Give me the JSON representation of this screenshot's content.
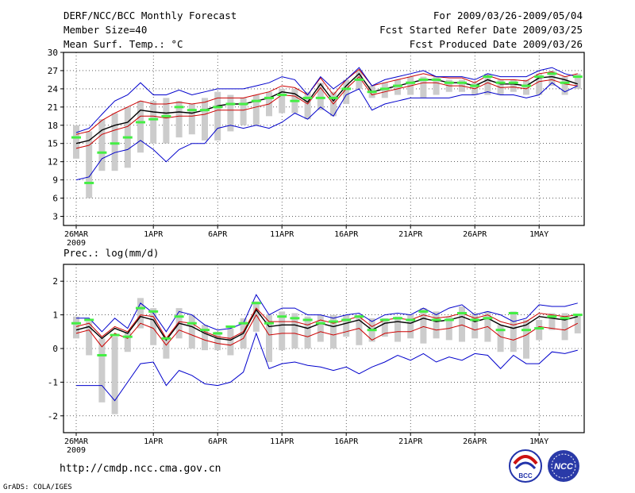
{
  "header": {
    "title": "DERF/NCC/BCC Monthly Forecast",
    "member_size": "Member Size=40",
    "variable": "Mean Surf. Temp.: °C",
    "period": "For 2009/03/26-2009/05/04",
    "fcst_started": "Fcst Started Refer Date 2009/03/25",
    "fcst_produced": "Fcst Produced Date 2009/03/26"
  },
  "footer": {
    "url": "http://cmdp.ncc.cma.gov.cn",
    "grads": "GrADS: COLA/IGES",
    "logo_bcc": "BCC",
    "logo_ncc": "NCC"
  },
  "colors": {
    "mean": "#000000",
    "spread": "#cc0000",
    "extreme": "#0000cc",
    "box": "#cccccc",
    "member_mark": "#44ee44"
  },
  "chart_data": [
    {
      "type": "line",
      "title": "",
      "ylabel": "Mean Surf. Temp.: °C",
      "ylim": [
        1.5,
        30
      ],
      "yticks": [
        3,
        6,
        9,
        12,
        15,
        18,
        21,
        24,
        27,
        30
      ],
      "xticks": [
        {
          "day": 0,
          "label": "26MAR",
          "sub": "2009"
        },
        {
          "day": 6,
          "label": "1APR"
        },
        {
          "day": 11,
          "label": "6APR"
        },
        {
          "day": 16,
          "label": "11APR"
        },
        {
          "day": 21,
          "label": "16APR"
        },
        {
          "day": 26,
          "label": "21APR"
        },
        {
          "day": 31,
          "label": "26APR"
        },
        {
          "day": 36,
          "label": "1MAY"
        }
      ],
      "days": 40,
      "series": [
        {
          "name": "ensemble_mean",
          "values": [
            15.0,
            15.5,
            17.2,
            18.0,
            18.5,
            20.5,
            20.2,
            20.0,
            20.2,
            20.0,
            20.5,
            21.2,
            21.5,
            21.5,
            22.0,
            22.5,
            23.5,
            23.2,
            21.8,
            24.8,
            22.0,
            24.5,
            26.5,
            23.5,
            24.0,
            24.5,
            25.0,
            25.5,
            25.5,
            25.0,
            25.0,
            24.5,
            25.5,
            24.8,
            24.8,
            24.5,
            25.8,
            26.0,
            25.5,
            24.8
          ]
        },
        {
          "name": "upper_spread",
          "values": [
            16.5,
            17.0,
            18.8,
            20.0,
            21.0,
            22.0,
            21.5,
            21.5,
            21.8,
            21.5,
            21.8,
            22.5,
            22.5,
            22.5,
            23.0,
            23.5,
            24.5,
            24.2,
            23.0,
            25.8,
            23.0,
            25.5,
            27.2,
            24.5,
            25.0,
            25.5,
            26.0,
            26.5,
            26.0,
            25.8,
            25.8,
            25.0,
            26.2,
            25.5,
            25.5,
            25.3,
            26.5,
            26.8,
            26.0,
            26.5
          ]
        },
        {
          "name": "lower_spread",
          "values": [
            14.2,
            14.7,
            16.5,
            17.2,
            17.8,
            19.5,
            19.5,
            19.2,
            19.5,
            19.5,
            19.8,
            20.5,
            20.5,
            20.5,
            21.0,
            21.5,
            23.0,
            22.8,
            21.5,
            24.2,
            21.5,
            24.0,
            26.0,
            23.0,
            23.5,
            24.0,
            24.5,
            25.0,
            25.0,
            24.5,
            24.5,
            24.0,
            25.0,
            24.2,
            24.3,
            24.0,
            25.2,
            25.5,
            24.8,
            24.5
          ]
        },
        {
          "name": "member_max",
          "values": [
            16.8,
            17.5,
            19.8,
            22.0,
            23.0,
            25.0,
            23.0,
            23.0,
            23.8,
            23.0,
            23.5,
            24.0,
            24.0,
            24.0,
            24.5,
            25.0,
            26.0,
            25.5,
            23.0,
            26.0,
            24.0,
            25.5,
            27.5,
            24.5,
            25.5,
            26.0,
            26.5,
            27.0,
            26.0,
            26.0,
            26.0,
            25.5,
            26.5,
            26.0,
            26.0,
            26.0,
            27.0,
            27.5,
            26.5,
            26.0
          ]
        },
        {
          "name": "member_min",
          "values": [
            9.0,
            9.5,
            12.5,
            13.5,
            14.0,
            15.5,
            14.0,
            12.0,
            14.0,
            15.0,
            15.0,
            17.5,
            18.0,
            17.5,
            18.0,
            17.5,
            18.5,
            20.0,
            19.0,
            21.0,
            19.5,
            23.0,
            24.0,
            20.5,
            21.5,
            22.0,
            22.5,
            22.5,
            22.5,
            22.5,
            23.0,
            23.0,
            23.5,
            23.0,
            23.0,
            22.5,
            23.0,
            25.0,
            23.5,
            24.5
          ]
        },
        {
          "name": "observed_marks",
          "values": [
            16.0,
            8.5,
            13.5,
            15.0,
            16.0,
            18.5,
            19.0,
            19.5,
            21.0,
            20.5,
            20.5,
            21.0,
            21.5,
            21.5,
            22.0,
            22.5,
            23.0,
            22.0,
            22.5,
            22.5,
            22.5,
            24.0,
            25.5,
            23.5,
            24.0,
            24.5,
            25.0,
            25.5,
            25.5,
            25.0,
            25.0,
            24.5,
            26.0,
            25.0,
            25.0,
            24.5,
            26.0,
            26.5,
            25.0,
            26.0
          ]
        }
      ],
      "bars": [
        {
          "low": 12.5,
          "high": 18.0
        },
        {
          "low": 6.0,
          "high": 17.0
        },
        {
          "low": 10.5,
          "high": 19.0
        },
        {
          "low": 10.5,
          "high": 20.0
        },
        {
          "low": 11.0,
          "high": 21.0
        },
        {
          "low": 13.5,
          "high": 22.0
        },
        {
          "low": 15.0,
          "high": 22.0
        },
        {
          "low": 15.0,
          "high": 22.5
        },
        {
          "low": 16.0,
          "high": 22.0
        },
        {
          "low": 16.5,
          "high": 21.5
        },
        {
          "low": 15.5,
          "high": 22.5
        },
        {
          "low": 15.5,
          "high": 23.5
        },
        {
          "low": 17.0,
          "high": 23.0
        },
        {
          "low": 18.0,
          "high": 22.5
        },
        {
          "low": 18.0,
          "high": 23.0
        },
        {
          "low": 19.5,
          "high": 23.5
        },
        {
          "low": 20.0,
          "high": 24.0
        },
        {
          "low": 20.0,
          "high": 24.0
        },
        {
          "low": 19.0,
          "high": 23.5
        },
        {
          "low": 20.5,
          "high": 25.0
        },
        {
          "low": 19.5,
          "high": 23.5
        },
        {
          "low": 21.5,
          "high": 25.5
        },
        {
          "low": 24.0,
          "high": 27.0
        },
        {
          "low": 22.5,
          "high": 24.5
        },
        {
          "low": 22.5,
          "high": 25.0
        },
        {
          "low": 23.0,
          "high": 25.5
        },
        {
          "low": 23.0,
          "high": 26.0
        },
        {
          "low": 22.5,
          "high": 26.0
        },
        {
          "low": 23.0,
          "high": 26.0
        },
        {
          "low": 23.5,
          "high": 25.5
        },
        {
          "low": 23.5,
          "high": 25.5
        },
        {
          "low": 23.0,
          "high": 25.0
        },
        {
          "low": 23.0,
          "high": 26.5
        },
        {
          "low": 23.0,
          "high": 25.5
        },
        {
          "low": 23.5,
          "high": 25.5
        },
        {
          "low": 23.0,
          "high": 25.5
        },
        {
          "low": 23.0,
          "high": 26.5
        },
        {
          "low": 24.5,
          "high": 27.0
        },
        {
          "low": 23.0,
          "high": 26.0
        },
        {
          "low": 24.0,
          "high": 26.5
        }
      ]
    },
    {
      "type": "line",
      "title": "Prec.: log(mm/d)",
      "ylabel": "log(mm/d)",
      "ylim": [
        -2.5,
        2.5
      ],
      "yticks": [
        -2,
        -1,
        0,
        1,
        2
      ],
      "xticks": [
        {
          "day": 0,
          "label": "26MAR",
          "sub": "2009"
        },
        {
          "day": 6,
          "label": "1APR"
        },
        {
          "day": 11,
          "label": "6APR"
        },
        {
          "day": 16,
          "label": "11APR"
        },
        {
          "day": 21,
          "label": "16APR"
        },
        {
          "day": 26,
          "label": "21APR"
        },
        {
          "day": 31,
          "label": "26APR"
        },
        {
          "day": 36,
          "label": "1MAY"
        }
      ],
      "days": 40,
      "series": [
        {
          "name": "ensemble_mean",
          "values": [
            0.55,
            0.65,
            0.3,
            0.6,
            0.45,
            0.95,
            0.85,
            0.25,
            0.75,
            0.65,
            0.45,
            0.3,
            0.25,
            0.45,
            1.15,
            0.65,
            0.7,
            0.7,
            0.6,
            0.75,
            0.65,
            0.75,
            0.85,
            0.55,
            0.75,
            0.8,
            0.75,
            0.9,
            0.8,
            0.85,
            0.95,
            0.8,
            0.9,
            0.7,
            0.6,
            0.7,
            0.95,
            0.9,
            0.85,
            0.95
          ]
        },
        {
          "name": "upper_spread",
          "values": [
            0.65,
            0.75,
            0.35,
            0.65,
            0.5,
            1.0,
            0.95,
            0.3,
            0.8,
            0.75,
            0.5,
            0.35,
            0.3,
            0.5,
            1.2,
            0.8,
            0.8,
            0.8,
            0.7,
            0.85,
            0.75,
            0.85,
            0.95,
            0.65,
            0.85,
            0.9,
            0.85,
            1.0,
            0.9,
            0.95,
            1.05,
            0.9,
            1.0,
            0.8,
            0.7,
            0.8,
            1.05,
            1.0,
            0.95,
            1.0
          ]
        },
        {
          "name": "lower_spread",
          "values": [
            0.45,
            0.55,
            0.05,
            0.45,
            0.3,
            0.75,
            0.6,
            0.1,
            0.55,
            0.4,
            0.25,
            0.15,
            0.1,
            0.3,
            1.0,
            0.4,
            0.45,
            0.45,
            0.35,
            0.5,
            0.4,
            0.5,
            0.6,
            0.25,
            0.45,
            0.5,
            0.5,
            0.65,
            0.55,
            0.6,
            0.7,
            0.55,
            0.65,
            0.35,
            0.25,
            0.4,
            0.65,
            0.6,
            0.55,
            0.75
          ]
        },
        {
          "name": "member_max",
          "values": [
            0.9,
            0.9,
            0.5,
            0.9,
            0.6,
            1.35,
            1.05,
            0.5,
            1.1,
            1.0,
            0.7,
            0.55,
            0.6,
            0.75,
            1.6,
            1.0,
            1.2,
            1.2,
            1.0,
            1.0,
            0.9,
            1.0,
            1.05,
            0.8,
            1.0,
            1.05,
            1.0,
            1.2,
            1.0,
            1.2,
            1.3,
            1.0,
            1.1,
            1.0,
            0.8,
            0.9,
            1.3,
            1.25,
            1.25,
            1.35
          ]
        },
        {
          "name": "member_min",
          "values": [
            -1.1,
            -1.1,
            -1.1,
            -1.55,
            -1.0,
            -0.45,
            -0.4,
            -1.1,
            -0.65,
            -0.8,
            -1.05,
            -1.1,
            -1.0,
            -0.7,
            0.45,
            -0.6,
            -0.45,
            -0.4,
            -0.5,
            -0.55,
            -0.65,
            -0.55,
            -0.75,
            -0.55,
            -0.4,
            -0.2,
            -0.35,
            -0.15,
            -0.4,
            -0.25,
            -0.35,
            -0.15,
            -0.2,
            -0.6,
            -0.2,
            -0.45,
            -0.45,
            -0.1,
            -0.15,
            -0.05
          ]
        },
        {
          "name": "observed_marks",
          "values": [
            0.75,
            0.85,
            -0.2,
            0.4,
            0.35,
            1.2,
            1.1,
            0.3,
            0.95,
            0.75,
            0.55,
            0.45,
            0.65,
            0.75,
            1.35,
            0.75,
            0.95,
            0.9,
            0.85,
            0.75,
            0.8,
            0.85,
            0.95,
            0.55,
            0.85,
            0.9,
            0.85,
            1.1,
            0.85,
            0.85,
            1.05,
            0.85,
            0.9,
            0.55,
            1.05,
            0.55,
            0.6,
            0.95,
            0.9,
            1.0
          ]
        }
      ],
      "bars": [
        {
          "low": 0.3,
          "high": 0.95
        },
        {
          "low": -0.2,
          "high": 0.8
        },
        {
          "low": -1.6,
          "high": 0.3
        },
        {
          "low": -1.95,
          "high": 0.35
        },
        {
          "low": -0.1,
          "high": 0.5
        },
        {
          "low": 0.6,
          "high": 1.5
        },
        {
          "low": 0.1,
          "high": 1.2
        },
        {
          "low": -0.3,
          "high": 0.3
        },
        {
          "low": 0.3,
          "high": 1.2
        },
        {
          "low": 0.0,
          "high": 1.0
        },
        {
          "low": -0.05,
          "high": 0.7
        },
        {
          "low": -0.05,
          "high": 0.5
        },
        {
          "low": -0.2,
          "high": 0.6
        },
        {
          "low": 0.0,
          "high": 0.9
        },
        {
          "low": 0.5,
          "high": 1.4
        },
        {
          "low": -0.4,
          "high": 1.0
        },
        {
          "low": -0.05,
          "high": 1.1
        },
        {
          "low": 0.0,
          "high": 1.05
        },
        {
          "low": 0.0,
          "high": 0.95
        },
        {
          "low": 0.2,
          "high": 1.0
        },
        {
          "low": 0.0,
          "high": 1.0
        },
        {
          "low": 0.35,
          "high": 1.0
        },
        {
          "low": 0.1,
          "high": 1.0
        },
        {
          "low": 0.2,
          "high": 0.9
        },
        {
          "low": 0.35,
          "high": 0.9
        },
        {
          "low": 0.2,
          "high": 0.95
        },
        {
          "low": 0.3,
          "high": 1.0
        },
        {
          "low": 0.15,
          "high": 1.2
        },
        {
          "low": 0.3,
          "high": 1.1
        },
        {
          "low": 0.25,
          "high": 0.95
        },
        {
          "low": 0.2,
          "high": 1.25
        },
        {
          "low": 0.3,
          "high": 1.05
        },
        {
          "low": 0.2,
          "high": 1.1
        },
        {
          "low": -0.1,
          "high": 0.7
        },
        {
          "low": -0.1,
          "high": 1.1
        },
        {
          "low": -0.3,
          "high": 0.85
        },
        {
          "low": 0.25,
          "high": 0.85
        },
        {
          "low": 0.55,
          "high": 1.05
        },
        {
          "low": 0.25,
          "high": 1.05
        },
        {
          "low": 0.45,
          "high": 1.0
        }
      ]
    }
  ]
}
